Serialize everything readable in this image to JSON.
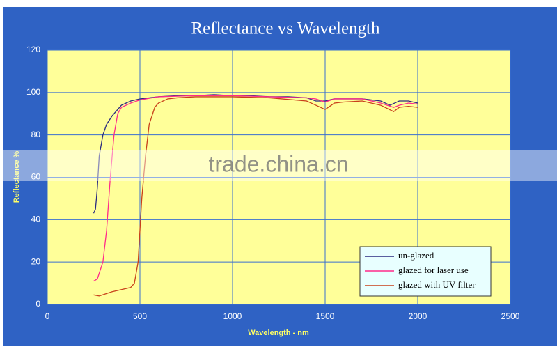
{
  "chart_data": {
    "type": "line",
    "title": "Reflectance vs Wavelength",
    "x_label": "Wavelength - nm",
    "y_label": "Reflectance %",
    "xlim": [
      0,
      2500
    ],
    "xticks": [
      0,
      500,
      1000,
      1500,
      2000,
      2500
    ],
    "ylim": [
      0,
      120
    ],
    "yticks": [
      0,
      20,
      40,
      60,
      80,
      100,
      120
    ],
    "grid": true,
    "legend": "lower right",
    "series": [
      {
        "name": "un-glazed",
        "color": "#2a2a80",
        "x": [
          250,
          260,
          270,
          280,
          300,
          320,
          350,
          400,
          450,
          500,
          600,
          700,
          800,
          900,
          1000,
          1100,
          1200,
          1300,
          1400,
          1450,
          1500,
          1550,
          1600,
          1700,
          1800,
          1850,
          1900,
          1950,
          2000
        ],
        "values": [
          43,
          45,
          55,
          70,
          80,
          85,
          89,
          94,
          96,
          97,
          98,
          98.5,
          98.5,
          99,
          98.5,
          98.5,
          98,
          98,
          97.5,
          96,
          96,
          97,
          97,
          97,
          96,
          94,
          96,
          96,
          95
        ]
      },
      {
        "name": "glazed for laser use",
        "color": "#ff2a8a",
        "x": [
          250,
          270,
          300,
          320,
          340,
          360,
          380,
          400,
          450,
          500,
          600,
          800,
          1000,
          1200,
          1400,
          1450,
          1500,
          1550,
          1700,
          1800,
          1870,
          1900,
          1950,
          2000
        ],
        "values": [
          11,
          12,
          20,
          35,
          60,
          80,
          90,
          93,
          95,
          96.5,
          98,
          98.5,
          98.5,
          98,
          97.5,
          97,
          95.5,
          97,
          97,
          95,
          93,
          94,
          95,
          94.5
        ]
      },
      {
        "name": "glazed with UV filter",
        "color": "#c8401a",
        "x": [
          250,
          280,
          350,
          400,
          450,
          470,
          490,
          500,
          510,
          530,
          550,
          580,
          600,
          650,
          700,
          800,
          1000,
          1200,
          1400,
          1450,
          1500,
          1550,
          1600,
          1700,
          1800,
          1870,
          1900,
          1950,
          2000
        ],
        "values": [
          4.5,
          4,
          6,
          7,
          8,
          10,
          20,
          35,
          50,
          70,
          85,
          93,
          95,
          97,
          97.5,
          98,
          98,
          97.5,
          96,
          94,
          92,
          95,
          95.5,
          96,
          94,
          91,
          93,
          93.5,
          93
        ]
      }
    ]
  },
  "watermark": "trade.china.cn"
}
